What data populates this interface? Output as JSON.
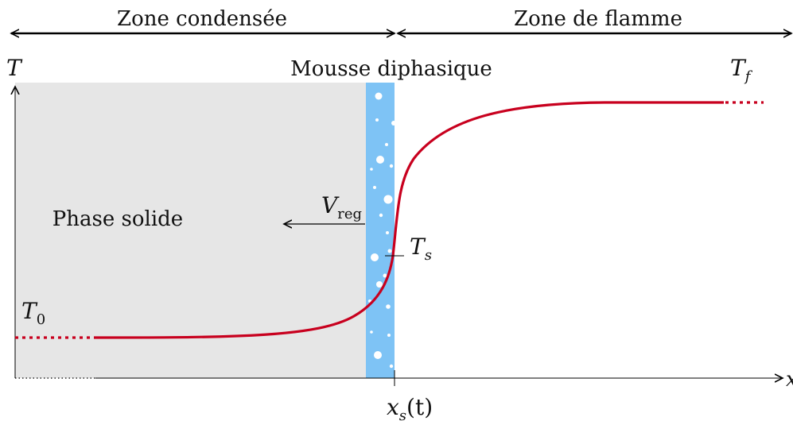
{
  "header": {
    "zone_condensed": "Zone condensée",
    "zone_flame": "Zone de flamme"
  },
  "labels": {
    "foam": "Mousse diphasique",
    "solid_phase": "Phase solide",
    "axis_T": "T",
    "axis_x": "x",
    "T_f": {
      "base": "T",
      "sub": "f"
    },
    "T_0": {
      "base": "T",
      "sub": "0"
    },
    "T_s": {
      "base": "T",
      "sub": "s"
    },
    "V_reg": {
      "base": "V",
      "sub": "reg"
    },
    "x_s": {
      "base": "x",
      "sub": "s",
      "rest": "(t)"
    }
  },
  "colors": {
    "solid_fill": "#e6e6e6",
    "foam_fill": "#7ec3f5",
    "bubble": "#ffffff",
    "curve": "#c8001e",
    "axis": "#000000"
  }
}
